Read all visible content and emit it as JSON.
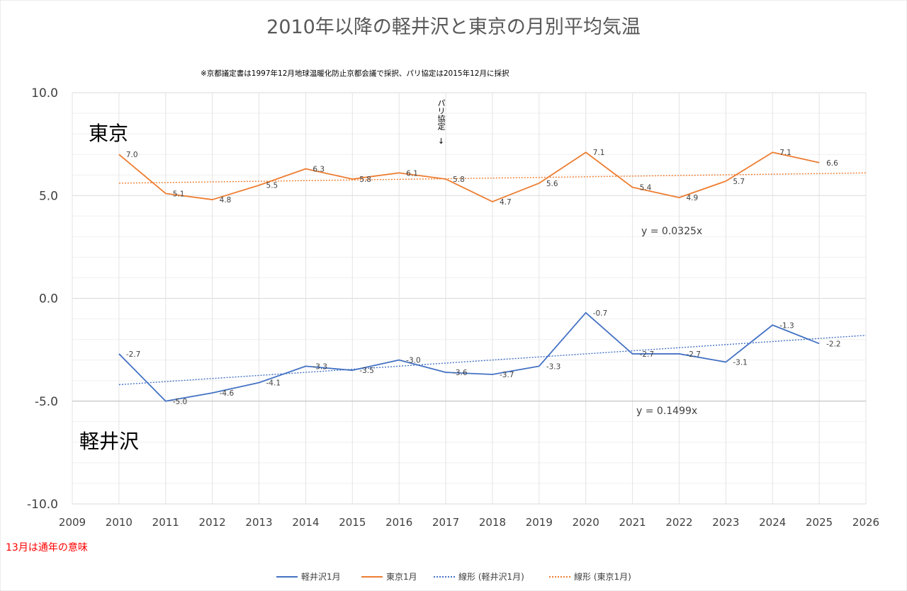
{
  "chart_data": {
    "type": "line",
    "title": "2010年以降の軽井沢と東京の月別平均気温",
    "subtitle": "※京都議定書は1997年12月地球温暖化防止京都会議で採択、パリ協定は2015年12月に採択",
    "x": [
      2010,
      2011,
      2012,
      2013,
      2014,
      2015,
      2016,
      2017,
      2018,
      2019,
      2020,
      2021,
      2022,
      2023,
      2024,
      2025
    ],
    "xlim": [
      2009,
      2026
    ],
    "x_ticks": [
      "2009",
      "2010",
      "2011",
      "2012",
      "2013",
      "2014",
      "2015",
      "2016",
      "2017",
      "2018",
      "2019",
      "2020",
      "2021",
      "2022",
      "2023",
      "2024",
      "2025",
      "2026"
    ],
    "ylim": [
      -10,
      10
    ],
    "y_ticks": [
      "10.0",
      "5.0",
      "0.0",
      "-5.0",
      "-10.0"
    ],
    "grid": true,
    "legend_position": "bottom",
    "series": [
      {
        "name": "軽井沢1月",
        "color": "#4472c4",
        "values": [
          -2.7,
          -5.0,
          -4.6,
          -4.1,
          -3.3,
          -3.5,
          -3.0,
          -3.6,
          -3.7,
          -3.3,
          -0.7,
          -2.7,
          -2.7,
          -3.1,
          -1.3,
          -2.2
        ],
        "labels": [
          "-2.7",
          "-5.0",
          "-4.6",
          "-4.1",
          "-3.3",
          "-3.5",
          "-3.0",
          "-3.6",
          "-3.7",
          "-3.3",
          "-0.7",
          "-2.7",
          "-2.7",
          "-3.1",
          "-1.3",
          "-2.2"
        ]
      },
      {
        "name": "東京1月",
        "color": "#ed7d31",
        "values": [
          7.0,
          5.1,
          4.8,
          5.5,
          6.3,
          5.8,
          6.1,
          5.8,
          4.7,
          5.6,
          7.1,
          5.4,
          4.9,
          5.7,
          7.1,
          6.6
        ],
        "labels": [
          "7.0",
          "5.1",
          "4.8",
          "5.5",
          "6.3",
          "5.8",
          "6.1",
          "5.8",
          "4.7",
          "5.6",
          "7.1",
          "5.4",
          "4.9",
          "5.7",
          "7.1",
          "6.6"
        ]
      }
    ],
    "trendlines": [
      {
        "name": "線形 (軽井沢1月)",
        "color": "#4472c4",
        "equation": "y = 0.1499x",
        "y_at_2010": -4.2,
        "y_at_2026": -1.8
      },
      {
        "name": "線形 (東京1月)",
        "color": "#ed7d31",
        "equation": "y = 0.0325x",
        "y_at_2010": 5.6,
        "y_at_2026": 6.1
      }
    ],
    "annotations": {
      "tokyo_label": "東京",
      "karuizawa_label": "軽井沢",
      "paris_marker_text": "パリ協定",
      "paris_marker_arrow": "↓",
      "paris_marker_year": 2016.9,
      "footnote": "13月は通年の意味"
    }
  }
}
